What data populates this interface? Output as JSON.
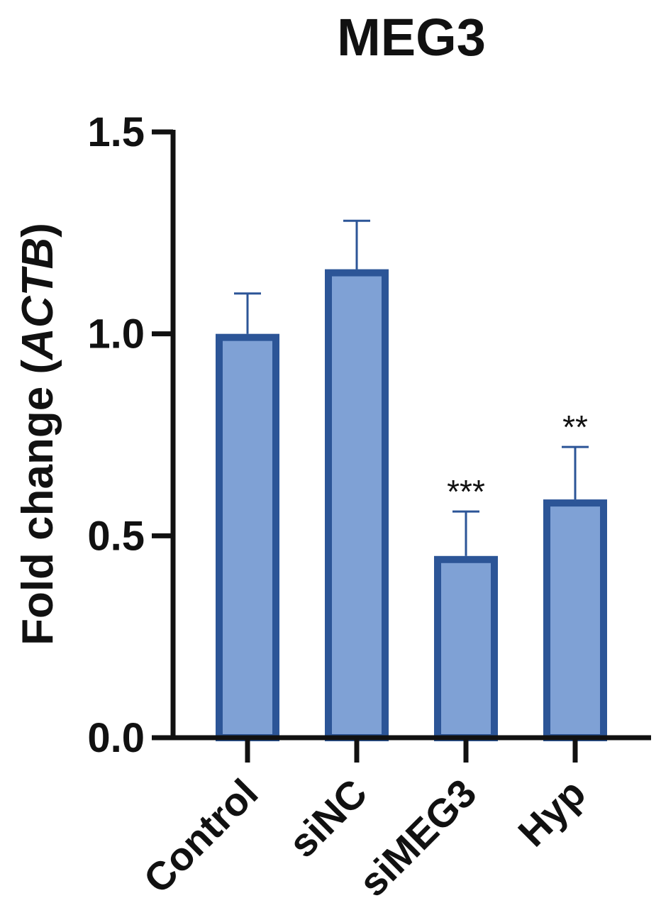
{
  "chart_data": {
    "type": "bar",
    "title": "MEG3",
    "ylabel_prefix": "Fold change (",
    "ylabel_italic": "ACTB",
    "ylabel_suffix": ")",
    "xlabel": "",
    "ylim": [
      0,
      1.5
    ],
    "yticks": [
      0.0,
      0.5,
      1.0,
      1.5
    ],
    "ytick_labels": [
      "0.0",
      "0.5",
      "1.0",
      "1.5"
    ],
    "categories": [
      "Control",
      "siNC",
      "siMEG3",
      "Hyp"
    ],
    "values": [
      1.0,
      1.16,
      0.45,
      0.59
    ],
    "errors": [
      0.1,
      0.12,
      0.11,
      0.13
    ],
    "significance": [
      "",
      "",
      "***",
      "**"
    ],
    "colors": {
      "bar_fill": "#7fa1d5",
      "bar_stroke": "#2c5597",
      "error_bar": "#2c5597",
      "axis": "#111111"
    },
    "grid": false,
    "legend": "none"
  }
}
